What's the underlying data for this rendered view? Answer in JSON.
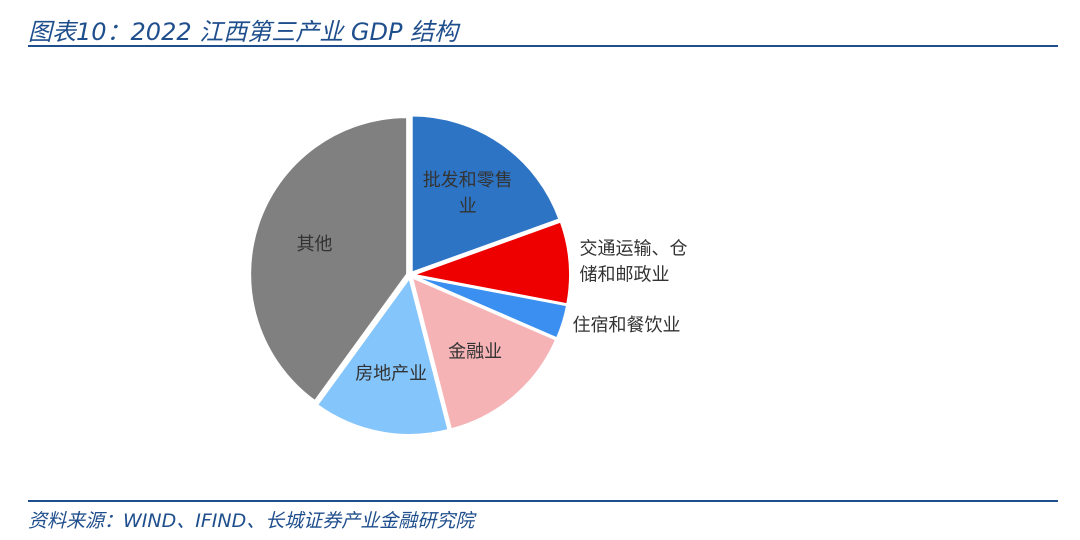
{
  "header": {
    "title": "图表10：2022 江西第三产业 GDP 结构"
  },
  "footer": {
    "source": "资料来源：WIND、IFIND、长城证券产业金融研究院"
  },
  "chart_data": {
    "type": "pie",
    "title": "",
    "start_angle_deg": 0,
    "direction": "clockwise",
    "slices": [
      {
        "label": "批发和零售业",
        "value": 19.5,
        "color": "#2e74c4",
        "label_lines": [
          "批发和零售",
          "业"
        ],
        "label_position": "inside"
      },
      {
        "label": "交通运输、仓储和邮政业",
        "value": 8.5,
        "color": "#ee0000",
        "label_lines": [
          "交通运输、仓",
          "储和邮政业"
        ],
        "label_position": "outside"
      },
      {
        "label": "住宿和餐饮业",
        "value": 3.5,
        "color": "#3b8ff0",
        "label_lines": [
          "住宿和餐饮业"
        ],
        "label_position": "outside"
      },
      {
        "label": "金融业",
        "value": 14.5,
        "color": "#f6b3b6",
        "label_lines": [
          "金融业"
        ],
        "label_position": "inside"
      },
      {
        "label": "房地产业",
        "value": 14.0,
        "color": "#84c5fb",
        "label_lines": [
          "房地产业"
        ],
        "label_position": "inside"
      },
      {
        "label": "其他",
        "value": 40.0,
        "color": "#808080",
        "label_lines": [
          "其他"
        ],
        "label_position": "inside"
      }
    ]
  }
}
